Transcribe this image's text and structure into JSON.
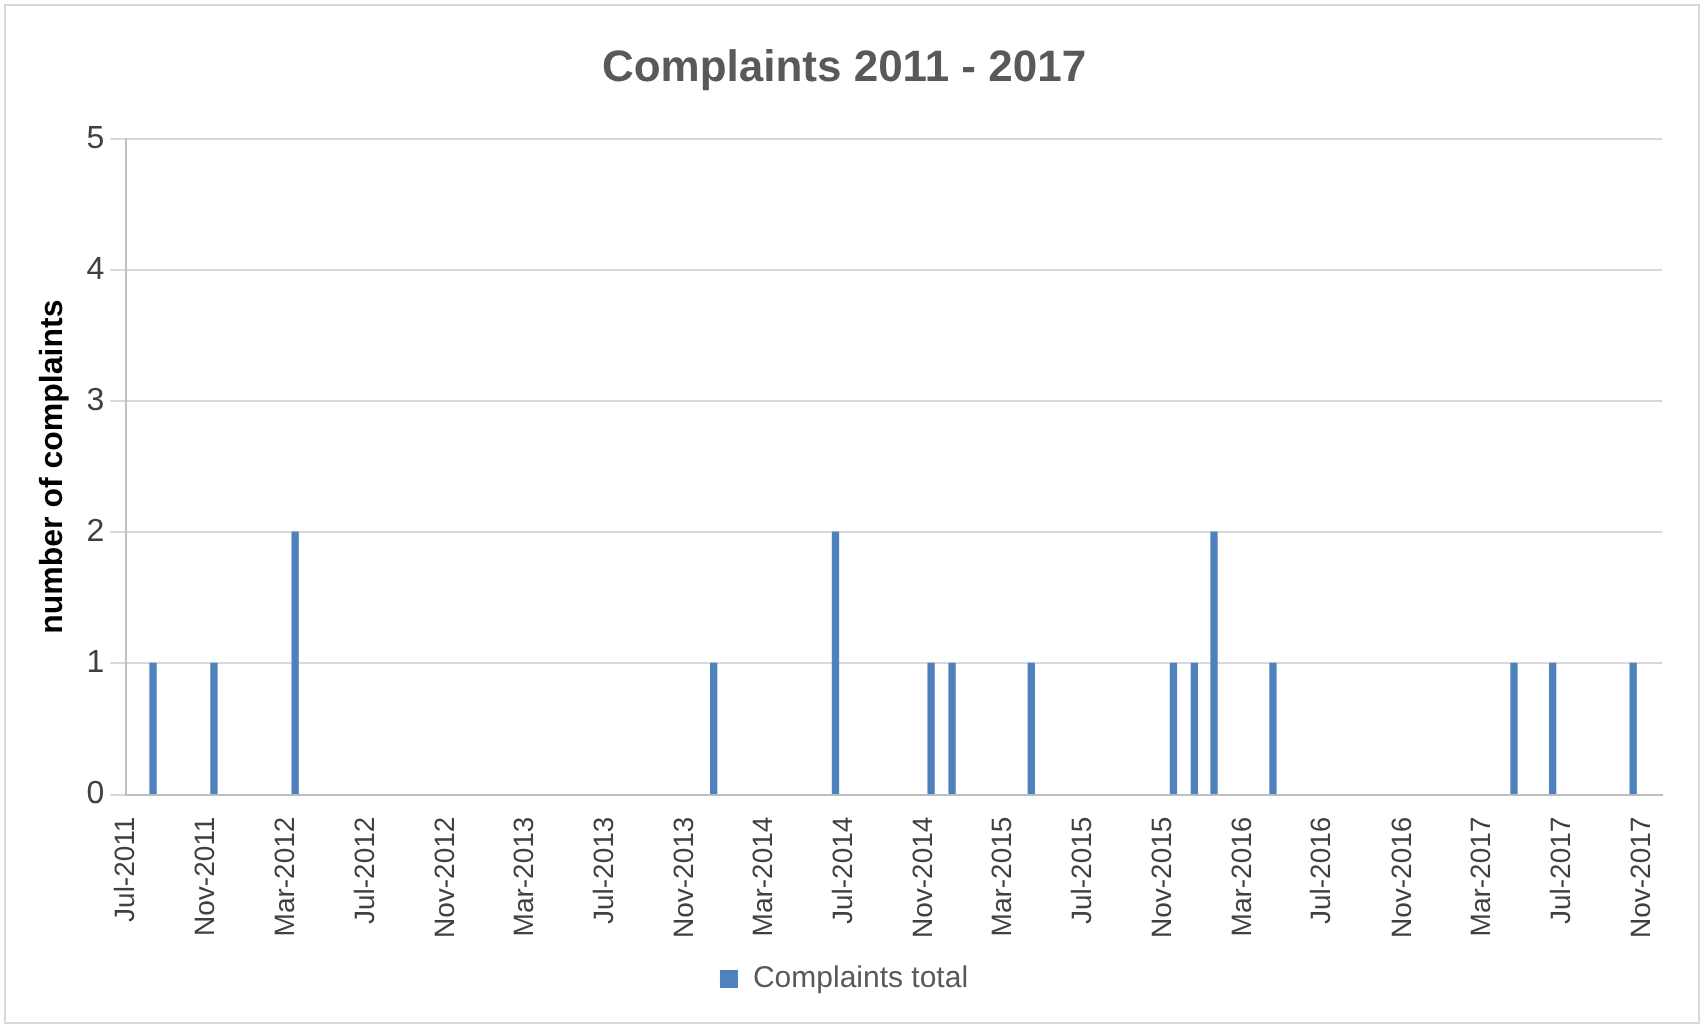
{
  "chart_data": {
    "type": "bar",
    "title": "Complaints 2011 - 2017",
    "ylabel": "number of complaints",
    "x": [
      "2011-08-11",
      "2011-11-12",
      "2012-03-15",
      "2013-12-14",
      "2014-06-18",
      "2014-11-11",
      "2014-12-13",
      "2015-04-13",
      "2015-11-16",
      "2015-12-18",
      "2016-01-17",
      "2016-04-16",
      "2017-04-19",
      "2017-06-17",
      "2017-10-18"
    ],
    "series": [
      {
        "name": "Complaints total",
        "color": "#4f81bd",
        "values": [
          1,
          1,
          2,
          1,
          2,
          1,
          1,
          1,
          1,
          1,
          2,
          1,
          1,
          1,
          1
        ]
      }
    ],
    "xlim": [
      "2011-07-01",
      "2017-12-01"
    ],
    "xticks": [
      {
        "value": "2011-07",
        "label": "Jul-2011"
      },
      {
        "value": "2011-11",
        "label": "Nov-2011"
      },
      {
        "value": "2012-03",
        "label": "Mar-2012"
      },
      {
        "value": "2012-07",
        "label": "Jul-2012"
      },
      {
        "value": "2012-11",
        "label": "Nov-2012"
      },
      {
        "value": "2013-03",
        "label": "Mar-2013"
      },
      {
        "value": "2013-07",
        "label": "Jul-2013"
      },
      {
        "value": "2013-11",
        "label": "Nov-2013"
      },
      {
        "value": "2014-03",
        "label": "Mar-2014"
      },
      {
        "value": "2014-07",
        "label": "Jul-2014"
      },
      {
        "value": "2014-11",
        "label": "Nov-2014"
      },
      {
        "value": "2015-03",
        "label": "Mar-2015"
      },
      {
        "value": "2015-07",
        "label": "Jul-2015"
      },
      {
        "value": "2015-11",
        "label": "Nov-2015"
      },
      {
        "value": "2016-03",
        "label": "Mar-2016"
      },
      {
        "value": "2016-07",
        "label": "Jul-2016"
      },
      {
        "value": "2016-11",
        "label": "Nov-2016"
      },
      {
        "value": "2017-03",
        "label": "Mar-2017"
      },
      {
        "value": "2017-07",
        "label": "Jul-2017"
      },
      {
        "value": "2017-11",
        "label": "Nov-2017"
      }
    ],
    "ylim": [
      0,
      5
    ],
    "yticks": [
      0,
      1,
      2,
      3,
      4,
      5
    ],
    "grid": "y",
    "legend": "bottom"
  }
}
